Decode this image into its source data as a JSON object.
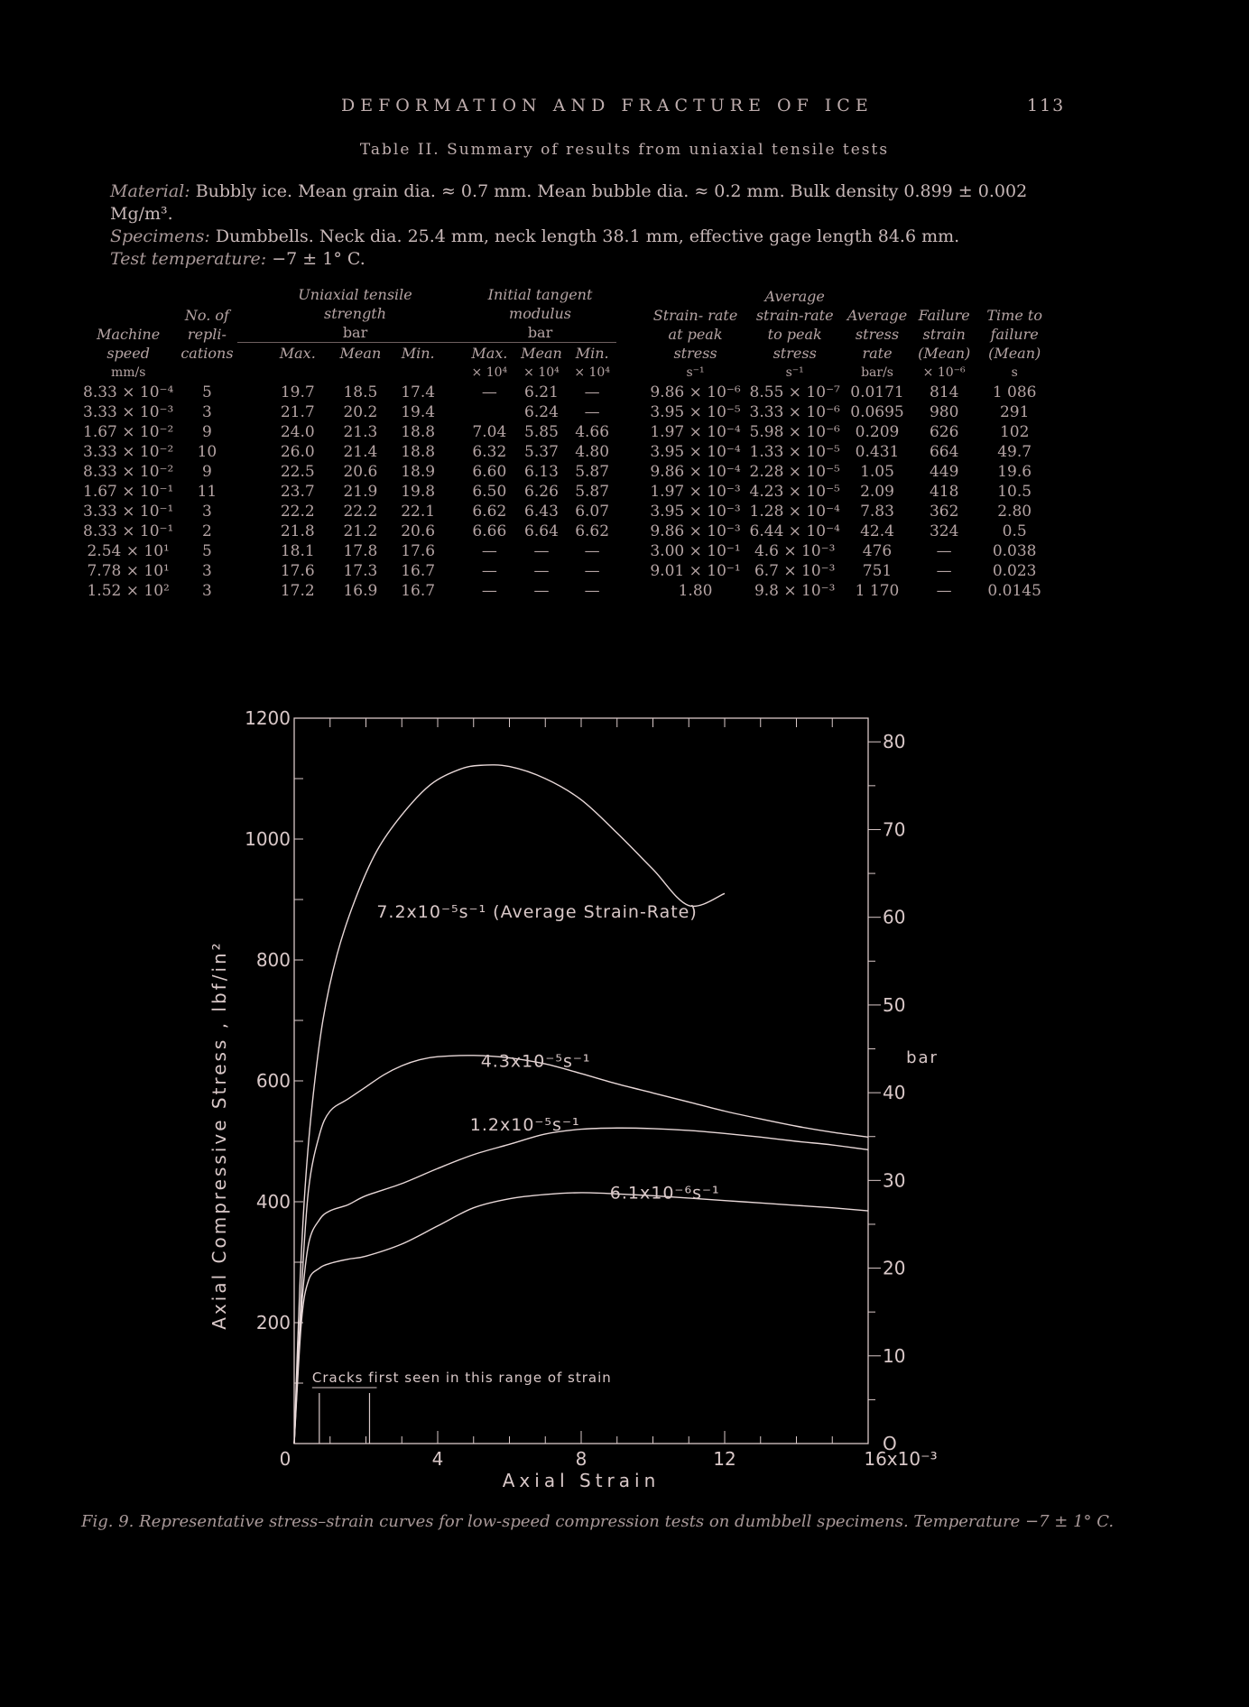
{
  "header": {
    "title": "DEFORMATION AND FRACTURE OF ICE",
    "page": "113"
  },
  "table_caption": "Table II. Summary of results from uniaxial tensile tests",
  "notes": {
    "material_label": "Material:",
    "material_text": "Bubbly ice. Mean grain dia. ≈ 0.7 mm. Mean bubble dia. ≈ 0.2 mm. Bulk density 0.899 ± 0.002 Mg/m³.",
    "specimens_label": "Specimens:",
    "specimens_text": "Dumbbells. Neck dia. 25.4 mm, neck length 38.1 mm, effective gage length 84.6 mm.",
    "temp_label": "Test temperature:",
    "temp_text": "−7 ± 1° C."
  },
  "table": {
    "head": {
      "machine": "Machine speed",
      "replications": "No. of repli- cations",
      "uts": "Uniaxial tensile strength",
      "uts_unit": "bar",
      "itm": "Initial tangent modulus",
      "itm_unit": "bar",
      "max": "Max.",
      "mean": "Mean",
      "min": "Min.",
      "strain_rate": "Strain- rate at peak stress",
      "avg_strain_rate": "Average strain-rate to peak stress",
      "avg_stress_rate": "Average stress rate",
      "failure_strain": "Failure strain (Mean)",
      "time_to_failure": "Time to failure (Mean)"
    },
    "units": {
      "machine": "mm/s",
      "itm_max": "× 10⁴",
      "itm_mean": "× 10⁴",
      "itm_min": "× 10⁴",
      "strain_rate": "s⁻¹",
      "avg_strain_rate": "s⁻¹",
      "avg_stress_rate": "bar/s",
      "failure_strain": "× 10⁻⁶",
      "time_to_failure": "s"
    },
    "rows": [
      [
        "8.33 × 10⁻⁴",
        "5",
        "19.7",
        "18.5",
        "17.4",
        "—",
        "6.21",
        "—",
        "9.86 × 10⁻⁶",
        "8.55 × 10⁻⁷",
        "0.0171",
        "814",
        "1 086"
      ],
      [
        "3.33 × 10⁻³",
        "3",
        "21.7",
        "20.2",
        "19.4",
        "",
        "6.24",
        "—",
        "3.95 × 10⁻⁵",
        "3.33 × 10⁻⁶",
        "0.0695",
        "980",
        "291"
      ],
      [
        "1.67 × 10⁻²",
        "9",
        "24.0",
        "21.3",
        "18.8",
        "7.04",
        "5.85",
        "4.66",
        "1.97 × 10⁻⁴",
        "5.98 × 10⁻⁶",
        "0.209",
        "626",
        "102"
      ],
      [
        "3.33 × 10⁻²",
        "10",
        "26.0",
        "21.4",
        "18.8",
        "6.32",
        "5.37",
        "4.80",
        "3.95 × 10⁻⁴",
        "1.33 × 10⁻⁵",
        "0.431",
        "664",
        "49.7"
      ],
      [
        "8.33 × 10⁻²",
        "9",
        "22.5",
        "20.6",
        "18.9",
        "6.60",
        "6.13",
        "5.87",
        "9.86 × 10⁻⁴",
        "2.28 × 10⁻⁵",
        "1.05",
        "449",
        "19.6"
      ],
      [
        "1.67 × 10⁻¹",
        "11",
        "23.7",
        "21.9",
        "19.8",
        "6.50",
        "6.26",
        "5.87",
        "1.97 × 10⁻³",
        "4.23 × 10⁻⁵",
        "2.09",
        "418",
        "10.5"
      ],
      [
        "3.33 × 10⁻¹",
        "3",
        "22.2",
        "22.2",
        "22.1",
        "6.62",
        "6.43",
        "6.07",
        "3.95 × 10⁻³",
        "1.28 × 10⁻⁴",
        "7.83",
        "362",
        "2.80"
      ],
      [
        "8.33 × 10⁻¹",
        "2",
        "21.8",
        "21.2",
        "20.6",
        "6.66",
        "6.64",
        "6.62",
        "9.86 × 10⁻³",
        "6.44 × 10⁻⁴",
        "42.4",
        "324",
        "0.5"
      ],
      [
        "2.54 × 10¹",
        "5",
        "18.1",
        "17.8",
        "17.6",
        "—",
        "—",
        "—",
        "3.00 × 10⁻¹",
        "4.6 × 10⁻³",
        "476",
        "—",
        "0.038"
      ],
      [
        "7.78 × 10¹",
        "3",
        "17.6",
        "17.3",
        "16.7",
        "—",
        "—",
        "—",
        "9.01 × 10⁻¹",
        "6.7 × 10⁻³",
        "751",
        "—",
        "0.023"
      ],
      [
        "1.52 × 10²",
        "3",
        "17.2",
        "16.9",
        "16.7",
        "—",
        "—",
        "—",
        "1.80",
        "9.8 × 10⁻³",
        "1 170",
        "—",
        "0.0145"
      ]
    ]
  },
  "chart_data": {
    "type": "line",
    "xlabel": "Axial Strain",
    "ylabel": "Axial Compressive Stress , lbf/in²",
    "y2label": "bar",
    "xlim": [
      0,
      16
    ],
    "ylim": [
      0,
      1200
    ],
    "y2lim": [
      0,
      82.7
    ],
    "xticks": [
      "0",
      "4",
      "8",
      "12",
      "16x10⁻³"
    ],
    "yticks": [
      "200",
      "400",
      "600",
      "800",
      "1000",
      "1200"
    ],
    "y2ticks": [
      "O",
      "10",
      "20",
      "30",
      "40",
      "50",
      "60",
      "70",
      "80"
    ],
    "series": [
      {
        "name": "7.2x10⁻⁵s⁻¹ (Average Strain-Rate)",
        "x": [
          0,
          0.15,
          0.3,
          0.5,
          0.8,
          1.2,
          1.7,
          2.3,
          3.0,
          3.8,
          4.6,
          5.2,
          6.0,
          7.0,
          8.0,
          9.0,
          10.0,
          11.0,
          12.0
        ],
        "y": [
          0,
          250,
          420,
          560,
          700,
          810,
          900,
          980,
          1040,
          1090,
          1115,
          1122,
          1120,
          1100,
          1065,
          1010,
          950,
          890,
          910
        ]
      },
      {
        "name": "4.3x10⁻⁵s⁻¹",
        "x": [
          0,
          0.2,
          0.4,
          0.7,
          1.0,
          1.5,
          2.0,
          2.5,
          3.0,
          3.5,
          4.0,
          5.0,
          6.0,
          7.0,
          8.0,
          9.0,
          10.0,
          11.0,
          12.0,
          13.0,
          14.0,
          15.0,
          16.0
        ],
        "y": [
          0,
          250,
          420,
          510,
          550,
          570,
          590,
          610,
          625,
          635,
          640,
          642,
          638,
          628,
          612,
          595,
          580,
          565,
          550,
          537,
          525,
          515,
          507
        ]
      },
      {
        "name": "1.2x10⁻⁵s⁻¹",
        "x": [
          0,
          0.2,
          0.4,
          0.7,
          1.0,
          1.5,
          2.0,
          3.0,
          4.0,
          5.0,
          6.0,
          7.0,
          8.0,
          9.0,
          10.0,
          11.0,
          12.0,
          13.0,
          14.0,
          15.0,
          16.0
        ],
        "y": [
          0,
          220,
          330,
          370,
          385,
          395,
          410,
          430,
          455,
          478,
          495,
          512,
          520,
          522,
          521,
          518,
          513,
          507,
          500,
          494,
          486
        ]
      },
      {
        "name": "6.1x10⁻⁶s⁻¹",
        "x": [
          0,
          0.2,
          0.4,
          0.7,
          1.0,
          1.5,
          2.0,
          3.0,
          4.0,
          5.0,
          6.0,
          7.0,
          8.0,
          9.0,
          10.0,
          11.0,
          12.0,
          13.0,
          14.0,
          15.0,
          16.0
        ],
        "y": [
          0,
          200,
          270,
          290,
          298,
          305,
          310,
          330,
          360,
          390,
          405,
          412,
          415,
          413,
          410,
          406,
          402,
          398,
          394,
          390,
          385
        ]
      }
    ],
    "annotation": "Cracks first seen in this range of strain",
    "crack_range": [
      0.7,
      2.1
    ]
  },
  "figure_caption": "Fig. 9. Representative stress–strain curves for low-speed compression tests on dumbbell specimens. Temperature −7 ± 1° C.",
  "colors": {
    "background": "#000000",
    "ink": "#d9c8c8",
    "curve": "#e8d8d8"
  }
}
